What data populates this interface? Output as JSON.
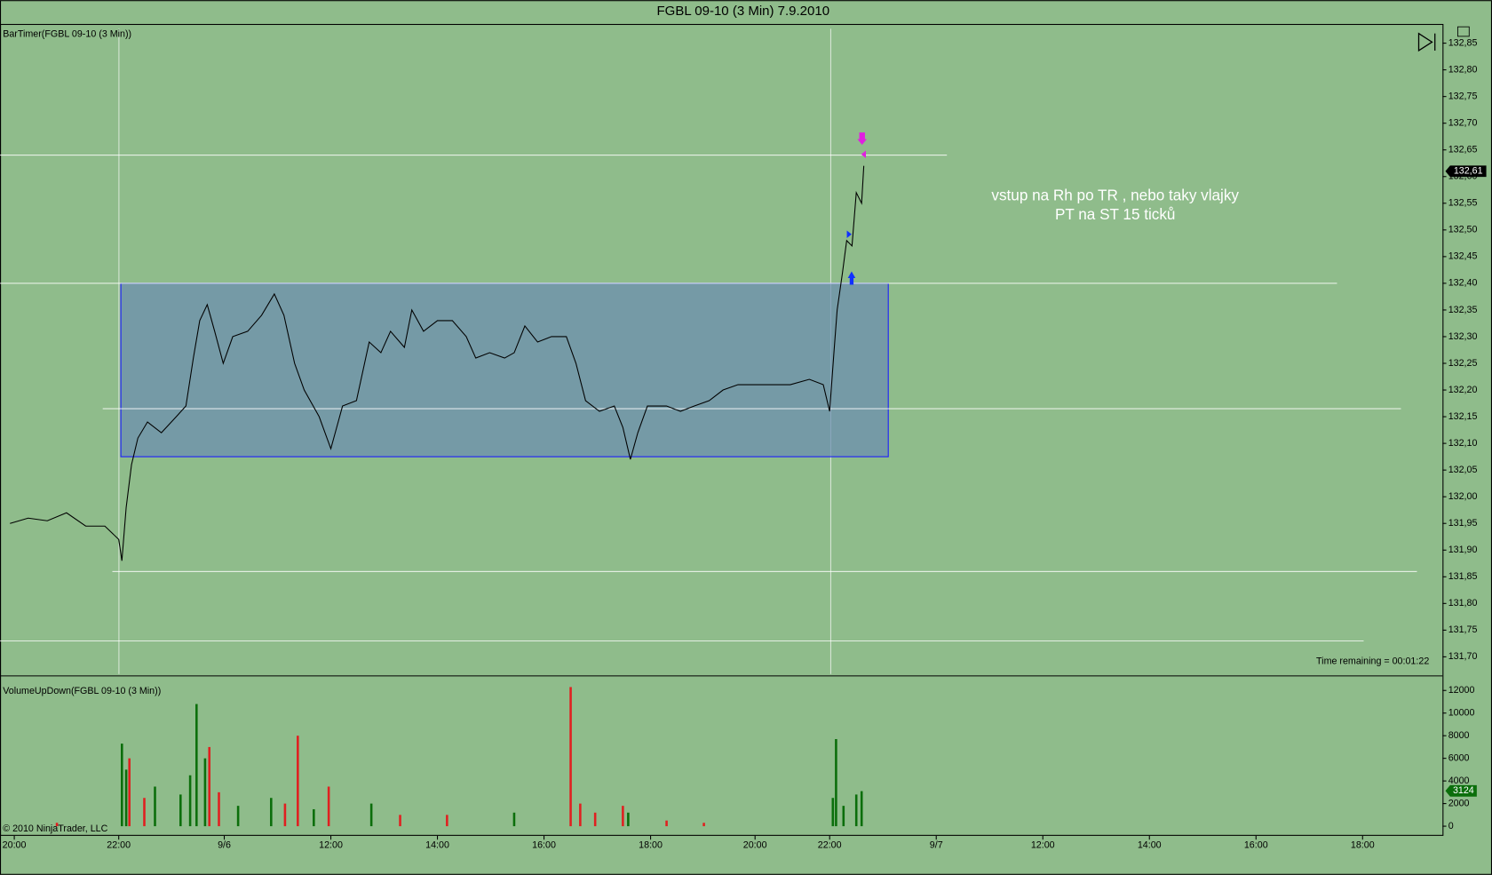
{
  "chart_data": [
    {
      "type": "line",
      "title": "FGBL 09-10 (3 Min)  7.9.2010",
      "indicator": "BarTimer(FGBL 09-10 (3 Min))",
      "annotation": [
        "vstup na Rh po TR , nebo taky vlajky",
        "PT na ST 15 ticků"
      ],
      "timer": "Time remaining = 00:01:22",
      "xlim": [
        -0.134,
        13.4
      ],
      "ylim": [
        131.666,
        132.886
      ],
      "yticks": [
        {
          "value": 131.7,
          "label": "131,70"
        },
        {
          "value": 131.75,
          "label": "131,75"
        },
        {
          "value": 131.8,
          "label": "131,80"
        },
        {
          "value": 131.85,
          "label": "131,85"
        },
        {
          "value": 131.9,
          "label": "131,90"
        },
        {
          "value": 131.95,
          "label": "131,95"
        },
        {
          "value": 132.0,
          "label": "132,00"
        },
        {
          "value": 132.05,
          "label": "132,05"
        },
        {
          "value": 132.1,
          "label": "132,10"
        },
        {
          "value": 132.15,
          "label": "132,15"
        },
        {
          "value": 132.2,
          "label": "132,20"
        },
        {
          "value": 132.25,
          "label": "132,25"
        },
        {
          "value": 132.3,
          "label": "132,30"
        },
        {
          "value": 132.35,
          "label": "132,35"
        },
        {
          "value": 132.4,
          "label": "132,40"
        },
        {
          "value": 132.45,
          "label": "132,45"
        },
        {
          "value": 132.5,
          "label": "132,50"
        },
        {
          "value": 132.55,
          "label": "132,55"
        },
        {
          "value": 132.6,
          "label": "132,60"
        },
        {
          "value": 132.65,
          "label": "132,65"
        },
        {
          "value": 132.7,
          "label": "132,70"
        },
        {
          "value": 132.75,
          "label": "132,75"
        },
        {
          "value": 132.8,
          "label": "132,80"
        },
        {
          "value": 132.85,
          "label": "132,85"
        }
      ],
      "series": [
        {
          "color": "#000000",
          "x": [
            -0.04,
            0.13,
            0.31,
            0.49,
            0.67,
            0.85,
            0.98,
            1.01,
            1.05,
            1.1,
            1.16,
            1.25,
            1.38,
            1.52,
            1.61,
            1.68,
            1.74,
            1.81,
            1.88,
            1.96,
            2.05,
            2.19,
            2.32,
            2.44,
            2.53,
            2.63,
            2.72,
            2.86,
            2.97,
            3.08,
            3.21,
            3.33,
            3.44,
            3.53,
            3.66,
            3.73,
            3.84,
            3.97,
            4.11,
            4.24,
            4.33,
            4.46,
            4.6,
            4.69,
            4.79,
            4.91,
            5.04,
            5.18,
            5.27,
            5.36,
            5.49,
            5.63,
            5.71,
            5.78,
            5.85,
            5.94,
            6.12,
            6.25,
            6.38,
            6.52,
            6.65,
            6.79,
            6.92,
            7.1,
            7.28,
            7.46,
            7.59,
            7.65,
            7.69,
            7.72,
            7.77,
            7.81,
            7.86,
            7.9,
            7.95,
            7.97
          ],
          "values": [
            131.95,
            131.96,
            131.955,
            131.97,
            131.945,
            131.945,
            131.92,
            131.88,
            131.98,
            132.06,
            132.11,
            132.14,
            132.12,
            132.15,
            132.17,
            132.26,
            132.33,
            132.36,
            132.31,
            132.25,
            132.3,
            132.31,
            132.34,
            132.38,
            132.34,
            132.25,
            132.2,
            132.15,
            132.09,
            132.17,
            132.18,
            132.29,
            132.27,
            132.31,
            132.28,
            132.35,
            132.31,
            132.33,
            132.33,
            132.3,
            132.26,
            132.27,
            132.26,
            132.27,
            132.32,
            132.29,
            132.3,
            132.3,
            132.25,
            132.18,
            132.16,
            132.17,
            132.13,
            132.07,
            132.12,
            132.17,
            132.17,
            132.16,
            132.17,
            132.18,
            132.2,
            132.21,
            132.21,
            132.21,
            132.21,
            132.22,
            132.21,
            132.16,
            132.27,
            132.35,
            132.42,
            132.48,
            132.47,
            132.57,
            132.55,
            132.62
          ]
        }
      ],
      "last_value": {
        "value": 132.61,
        "label": "132,61"
      },
      "horizontal_lines": [
        {
          "y": 132.64,
          "x": [
            -0.134,
            8.75
          ]
        },
        {
          "y": 132.4,
          "x": [
            -0.134,
            12.41
          ]
        },
        {
          "y": 132.165,
          "x": [
            0.83,
            13.01
          ]
        },
        {
          "y": 131.86,
          "x": [
            0.92,
            13.16
          ]
        },
        {
          "y": 131.73,
          "x": [
            -0.134,
            12.66
          ]
        }
      ],
      "rectangle": {
        "x": [
          1.0,
          8.2
        ],
        "y": [
          132.075,
          132.4
        ]
      }
    },
    {
      "type": "bar",
      "indicator": "VolumeUpDown(FGBL 09-10 (3 Min))",
      "copyright": "© 2010 NinjaTrader, LLC",
      "xlim": [
        -0.134,
        13.4
      ],
      "xticks": [
        {
          "value": 0,
          "label": "20:00"
        },
        {
          "value": 0.98,
          "label": "22:00"
        },
        {
          "value": 1.97,
          "label": "9/6"
        },
        {
          "value": 2.97,
          "label": "12:00"
        },
        {
          "value": 3.97,
          "label": "14:00"
        },
        {
          "value": 4.97,
          "label": "16:00"
        },
        {
          "value": 5.97,
          "label": "18:00"
        },
        {
          "value": 6.95,
          "label": "20:00"
        },
        {
          "value": 7.65,
          "label": "22:00"
        },
        {
          "value": 8.65,
          "label": "9/7"
        },
        {
          "value": 9.65,
          "label": "12:00"
        },
        {
          "value": 10.65,
          "label": "14:00"
        },
        {
          "value": 11.65,
          "label": "16:00"
        },
        {
          "value": 12.65,
          "label": "18:00"
        }
      ],
      "ylim": [
        -850,
        13200
      ],
      "yticks": [
        0,
        2000,
        4000,
        6000,
        8000,
        10000,
        12000
      ],
      "series": [
        {
          "color": "#0b6e0b",
          "x": [
            1.01,
            1.05,
            1.32,
            1.56,
            1.65,
            1.71,
            1.79,
            2.1,
            2.41,
            2.81,
            3.35,
            4.69,
            5.76,
            7.68,
            7.71,
            7.78,
            7.9,
            7.95
          ],
          "values": [
            7300,
            5000,
            3500,
            2800,
            4500,
            10800,
            6000,
            1800,
            2500,
            1500,
            2000,
            1200,
            1200,
            2500,
            7700,
            1800,
            2800,
            3100
          ]
        },
        {
          "color": "#e02020",
          "x": [
            0.4,
            1.08,
            1.22,
            1.83,
            1.92,
            2.54,
            2.66,
            2.95,
            3.62,
            4.06,
            5.22,
            5.31,
            5.45,
            5.71,
            6.12,
            6.47
          ],
          "values": [
            300,
            6000,
            2500,
            7000,
            3000,
            2000,
            8000,
            3500,
            1000,
            1000,
            12300,
            2000,
            1200,
            1800,
            500,
            300
          ]
        }
      ],
      "last_value": 3124
    }
  ]
}
